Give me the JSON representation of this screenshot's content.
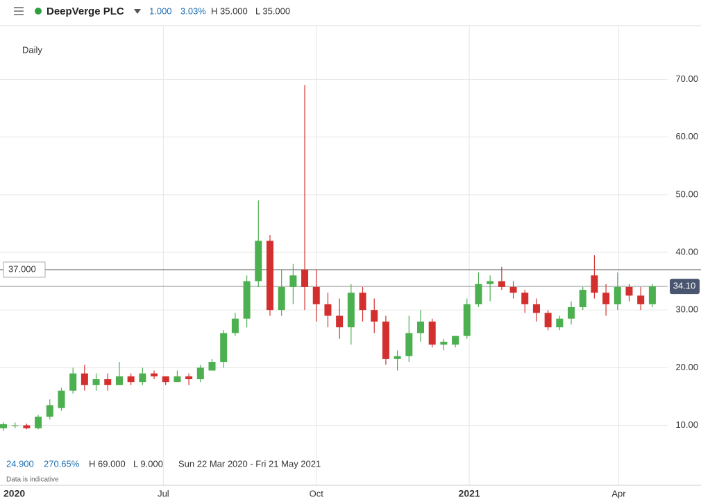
{
  "header": {
    "name": "DeepVerge PLC",
    "change": "1.000",
    "change_pct": "3.03%",
    "high": "H 35.000",
    "low": "L 35.000"
  },
  "interval": "Daily",
  "footer": {
    "change": "24.900",
    "change_pct": "270.65%",
    "high": "H 69.000",
    "low": "L 9.000",
    "range": "Sun 22 Mar 2020 - Fri 21 May 2021",
    "note": "Data is indicative"
  },
  "chart_data": {
    "type": "candlestick",
    "up_color": "#4caf50",
    "down_color": "#d32f2f",
    "grid": true,
    "x": [
      0,
      1,
      2,
      3,
      4,
      5,
      6,
      7,
      8,
      9,
      10,
      11,
      12,
      13,
      14,
      15,
      16,
      17,
      18,
      19,
      20,
      21,
      22,
      23,
      24,
      25,
      26,
      27,
      28,
      29,
      30,
      31,
      32,
      33,
      34,
      35,
      36,
      37,
      38,
      39,
      40,
      41,
      42,
      43,
      44,
      45,
      46,
      47,
      48,
      49,
      50,
      51,
      52,
      53,
      54,
      55,
      56
    ],
    "open": [
      9.5,
      10,
      10,
      9.5,
      11.5,
      13,
      16,
      19,
      17,
      18,
      17,
      18.5,
      17.5,
      19,
      18.5,
      17.5,
      18.5,
      18,
      19.5,
      21,
      26,
      28.5,
      35,
      42,
      30,
      34,
      37,
      34,
      31,
      29,
      27,
      33,
      30,
      28,
      21.5,
      22,
      26,
      28,
      24,
      24,
      25.5,
      31,
      34.5,
      35,
      34,
      33,
      31,
      29.5,
      27,
      28.5,
      30.5,
      36,
      33,
      31,
      34,
      32.5,
      31
    ],
    "high": [
      10.5,
      10.5,
      10.3,
      11.8,
      14.5,
      16.5,
      20,
      20.5,
      19,
      19,
      21,
      19,
      20,
      19.5,
      18.5,
      19.5,
      19,
      20.5,
      21.5,
      26.5,
      29.5,
      36,
      49,
      43,
      37,
      38,
      69,
      37,
      33,
      32,
      34.5,
      34,
      32,
      29,
      23,
      29,
      30,
      28.5,
      25,
      25.5,
      32,
      36.5,
      36,
      37.5,
      35,
      33.5,
      32,
      30,
      29,
      31.5,
      34,
      39.5,
      34.5,
      36.5,
      34.5,
      34,
      34.5
    ],
    "low": [
      9,
      9.5,
      9.3,
      9.3,
      11,
      12.5,
      15.5,
      16,
      16,
      16,
      17,
      17,
      17,
      18,
      17,
      17.5,
      17,
      17.5,
      19.5,
      20,
      25.5,
      27,
      34,
      29,
      29,
      31,
      30,
      28,
      27,
      25,
      24,
      28,
      26,
      20.5,
      19.5,
      21,
      24.5,
      23.5,
      23,
      23.5,
      25,
      30.5,
      31.5,
      33.5,
      32,
      29.5,
      28,
      26.5,
      26.5,
      27.5,
      30,
      32,
      29,
      30,
      31.5,
      30,
      30.5
    ],
    "close": [
      10.2,
      10,
      9.5,
      11.5,
      13.5,
      16,
      19,
      17,
      18,
      17,
      18.5,
      17.5,
      19,
      18.5,
      17.5,
      18.5,
      18,
      20,
      21,
      26,
      28.5,
      35,
      42,
      30,
      34,
      36,
      34,
      31,
      29,
      27,
      33,
      30,
      28,
      21.5,
      22,
      26,
      28,
      24,
      24.5,
      25.5,
      31,
      34.5,
      35,
      34,
      33,
      31,
      29.5,
      27,
      28.5,
      30.5,
      33.5,
      33,
      31,
      34,
      32.5,
      31,
      34.1
    ],
    "xlim": [
      -0.3,
      60.2
    ],
    "xticks": [
      {
        "value": 0,
        "label": "2020"
      },
      {
        "value": 13.8,
        "label": "Jul"
      },
      {
        "value": 27,
        "label": "Oct"
      },
      {
        "value": 40.2,
        "label": "2021"
      },
      {
        "value": 53.1,
        "label": "Apr"
      }
    ],
    "ylim": [
      -0.4,
      79.2
    ],
    "yticks": [
      {
        "value": 10,
        "label": "10.00"
      },
      {
        "value": 20,
        "label": "20.00"
      },
      {
        "value": 30,
        "label": "30.00"
      },
      {
        "value": 40,
        "label": "40.00"
      },
      {
        "value": 50,
        "label": "50.00"
      },
      {
        "value": 60,
        "label": "60.00"
      },
      {
        "value": 70,
        "label": "70.00"
      }
    ],
    "level_line": {
      "value": 37,
      "label": "37.000"
    },
    "last_price": {
      "value": 34.1,
      "label": "34.10"
    }
  }
}
